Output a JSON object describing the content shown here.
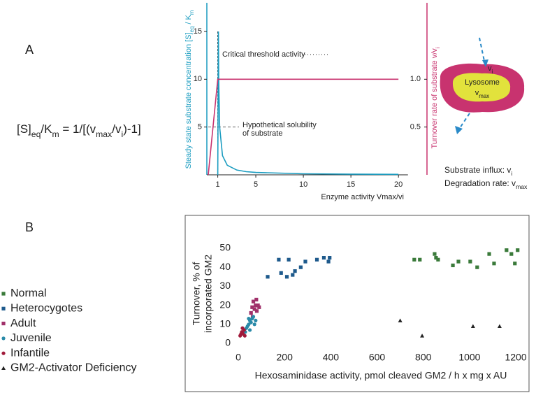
{
  "panel_labels": [
    "A",
    "B"
  ],
  "equation": [
    "[S]",
    "eq",
    "/K",
    "m",
    "    = 1/[(v",
    "max",
    "/v",
    "i",
    ")-1]"
  ],
  "diagram": {
    "lysosome": "Lysosome",
    "vmax": [
      "v",
      "max"
    ],
    "vi": [
      "v",
      "i"
    ],
    "influx": [
      "Substrate influx: v",
      "i"
    ],
    "degradation": [
      "Degradation rate: v",
      "max"
    ]
  },
  "chart_data": [
    {
      "type": "line",
      "xlabel": "Enzyme activity Vmax/vi",
      "ylabel": [
        "Steady state substrate concentration [S]",
        "eq",
        " / K",
        "m"
      ],
      "y2label": [
        "Turnover rate of substrate v/v",
        "i"
      ],
      "xlim": [
        0,
        23
      ],
      "xticks": [
        1,
        5,
        10,
        15,
        20
      ],
      "ylim": [
        0,
        18
      ],
      "yticks": [
        5,
        10,
        15
      ],
      "y2lim": [
        0,
        1.8
      ],
      "y2ticks": [
        {
          "value": 0.5,
          "label": "0.5"
        },
        {
          "value": 1,
          "label": "1.0"
        }
      ],
      "threshold_x": 1,
      "solubility_y": 5,
      "annotations": [
        "Critical threshold activity",
        "Hypothetical solubility",
        "of substrate"
      ],
      "series": [
        {
          "color": "#1a9cc0",
          "x": [
            1,
            1.07,
            1.1,
            1.2,
            1.5,
            2,
            3,
            4,
            5,
            10,
            15,
            20
          ],
          "values": [
            0,
            15,
            10,
            5,
            2,
            1,
            0.5,
            0.33,
            0.25,
            0.11,
            0.07,
            0.05
          ]
        },
        {
          "color": "#c8336f",
          "axis": "y2",
          "x": [
            0,
            1,
            20
          ],
          "values": [
            0,
            1,
            1
          ]
        }
      ]
    },
    {
      "type": "scatter",
      "xlabel": "Hexosaminidase activity, pmol cleaved GM2 / h x mg x AU",
      "ylabel": [
        "Turnover, % of",
        "incorporated GM2"
      ],
      "xlim": [
        -20,
        1230
      ],
      "xticks": [
        0,
        200,
        400,
        600,
        800,
        1000,
        1200
      ],
      "ylim": [
        0,
        55
      ],
      "yticks": [
        0,
        10,
        20,
        30,
        40,
        50
      ],
      "legend": "left",
      "series": [
        {
          "name": "Normal",
          "color": "#3a7a3a",
          "marker": "square",
          "x": [
            761,
            785,
            849,
            855,
            864,
            928,
            952,
            1003,
            1033,
            1085,
            1106,
            1160,
            1181,
            1196,
            1208
          ],
          "values": [
            44,
            44,
            47,
            45,
            44,
            41,
            43,
            43,
            40,
            47,
            42,
            49,
            47,
            42,
            49
          ]
        },
        {
          "name": "Heterocygotes",
          "color": "#1e5a8c",
          "marker": "square",
          "x": [
            127,
            175,
            185,
            210,
            218,
            235,
            245,
            270,
            290,
            340,
            370,
            390,
            395
          ],
          "values": [
            35,
            44,
            37,
            35,
            44,
            36,
            38,
            40,
            43,
            44,
            45,
            43,
            45
          ]
        },
        {
          "name": "Adult",
          "color": "#a0306a",
          "marker": "square",
          "x": [
            55,
            60,
            65,
            70,
            75,
            80,
            85,
            90,
            62,
            78
          ],
          "values": [
            16,
            19,
            22,
            18,
            20,
            17,
            20,
            19,
            14,
            23
          ]
        },
        {
          "name": "Juvenile",
          "color": "#2a8aa8",
          "marker": "circle",
          "x": [
            30,
            35,
            40,
            45,
            50,
            55,
            60,
            65,
            70,
            50,
            75,
            45
          ],
          "values": [
            6,
            8,
            9,
            10,
            12,
            11,
            13,
            14,
            10,
            7,
            12,
            13
          ]
        },
        {
          "name": "Infantile",
          "color": "#a01a3a",
          "marker": "circle",
          "x": [
            8,
            12,
            15,
            20,
            25,
            18,
            28
          ],
          "values": [
            4,
            5,
            6,
            5,
            7,
            8,
            4
          ]
        },
        {
          "name": "GM2-Activator Deficiency",
          "color": "#222222",
          "marker": "triangle",
          "x": [
            700,
            795,
            1015,
            1130
          ],
          "values": [
            12,
            4,
            9,
            9
          ]
        }
      ]
    }
  ]
}
